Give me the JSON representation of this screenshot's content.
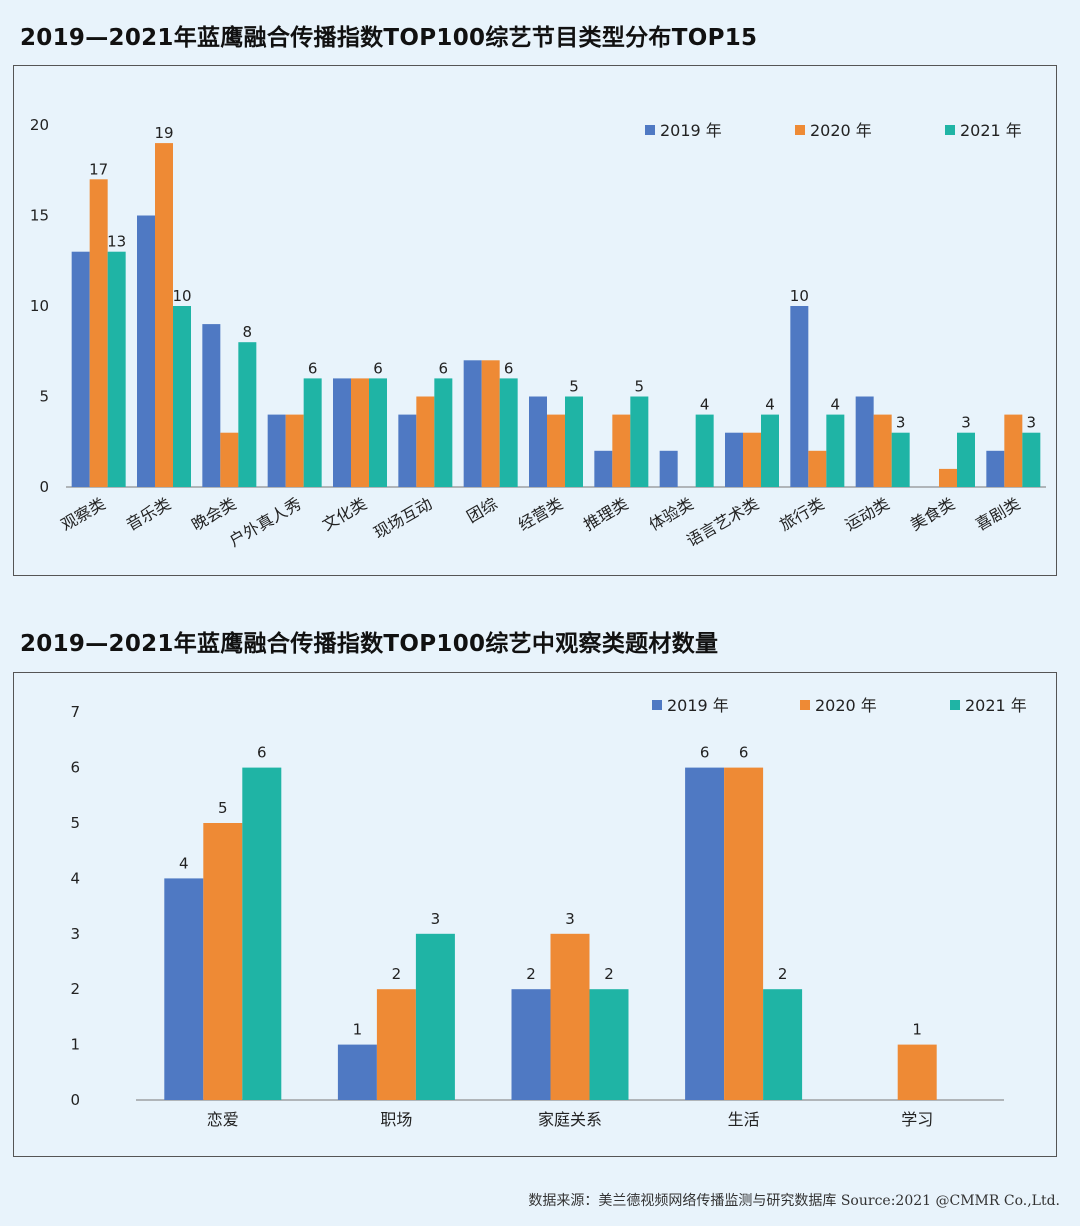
{
  "titles": {
    "chart1": "2019—2021年蓝鹰融合传播指数TOP100综艺节目类型分布TOP15",
    "chart2": "2019—2021年蓝鹰融合传播指数TOP100综艺中观察类题材数量"
  },
  "source": "数据来源：美兰德视频网络传播监测与研究数据库 Source:2021 @CMMR Co.,Ltd.",
  "colors": {
    "s2019": "#4f79c3",
    "s2020": "#ee8a35",
    "s2021": "#1fb4a5"
  },
  "chart_data": [
    {
      "type": "bar",
      "title": "2019—2021年蓝鹰融合传播指数TOP100综艺节目类型分布TOP15",
      "categories": [
        "观察类",
        "音乐类",
        "晚会类",
        "户外真人秀",
        "文化类",
        "现场互动",
        "团综",
        "经营类",
        "推理类",
        "体验类",
        "语言艺术类",
        "旅行类",
        "运动类",
        "美食类",
        "喜剧类"
      ],
      "series": [
        {
          "name": "2019 年",
          "values": [
            13,
            15,
            9,
            4,
            6,
            4,
            7,
            5,
            2,
            2,
            3,
            10,
            5,
            0,
            2
          ]
        },
        {
          "name": "2020 年",
          "values": [
            17,
            19,
            3,
            4,
            6,
            5,
            7,
            4,
            4,
            0,
            3,
            2,
            4,
            1,
            4
          ]
        },
        {
          "name": "2021 年",
          "values": [
            13,
            10,
            8,
            6,
            6,
            6,
            6,
            5,
            5,
            4,
            4,
            4,
            3,
            3,
            3
          ]
        }
      ],
      "labeled_series": "2021 年",
      "extra_labels": [
        {
          "category": "观察类",
          "series": "2020 年"
        },
        {
          "category": "音乐类",
          "series": "2020 年"
        },
        {
          "category": "旅行类",
          "series": "2019 年"
        }
      ],
      "yticks": [
        0,
        5,
        10,
        15,
        20
      ],
      "ylim": [
        0,
        20
      ],
      "legend": "top-right"
    },
    {
      "type": "bar",
      "title": "2019—2021年蓝鹰融合传播指数TOP100综艺中观察类题材数量",
      "categories": [
        "恋爱",
        "职场",
        "家庭关系",
        "生活",
        "学习"
      ],
      "series": [
        {
          "name": "2019 年",
          "values": [
            4,
            1,
            2,
            6,
            0
          ]
        },
        {
          "name": "2020 年",
          "values": [
            5,
            2,
            3,
            6,
            1
          ]
        },
        {
          "name": "2021 年",
          "values": [
            6,
            3,
            2,
            2,
            0
          ]
        }
      ],
      "ytick_labels": [
        "0",
        "1",
        "2",
        "3",
        "4",
        "5",
        "6",
        "7"
      ],
      "ylim": [
        0,
        6.5
      ],
      "legend": "top-right"
    }
  ]
}
